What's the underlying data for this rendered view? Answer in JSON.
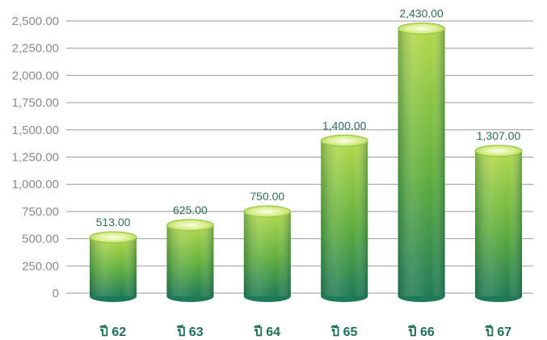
{
  "chart_data": {
    "type": "bar",
    "title": "",
    "xlabel": "",
    "ylabel": "",
    "categories": [
      "ปี 62",
      "ปี 63",
      "ปี 64",
      "ปี 65",
      "ปี 66",
      "ปี 67"
    ],
    "values": [
      513.0,
      625.0,
      750.0,
      1400.0,
      2430.0,
      1307.0
    ],
    "value_labels": [
      "513.00",
      "625.00",
      "750.00",
      "1,400.00",
      "2,430.00",
      "1,307.00"
    ],
    "ylim": [
      0,
      2500
    ],
    "y_ticks": [
      0,
      250,
      500,
      750,
      1000,
      1250,
      1500,
      1750,
      2000,
      2250,
      2500
    ],
    "y_tick_labels": [
      "0",
      "250.00",
      "500.00",
      "750.00",
      "1,000.00",
      "1,250.00",
      "1,500.00",
      "1,750.00",
      "2,000.00",
      "2,250.00",
      "2,500.00"
    ],
    "grid": true,
    "legend": "none",
    "colors": {
      "bar_light": "#b4d94a",
      "bar_mid": "#5fae3c",
      "bar_dark": "#1e7a55",
      "bar_top": "#d8ec8a",
      "grid": "#9a9a9a",
      "tick_text": "#8a8a8a",
      "value_text": "#2f6b5a",
      "category_text": "#1f6f57"
    }
  }
}
